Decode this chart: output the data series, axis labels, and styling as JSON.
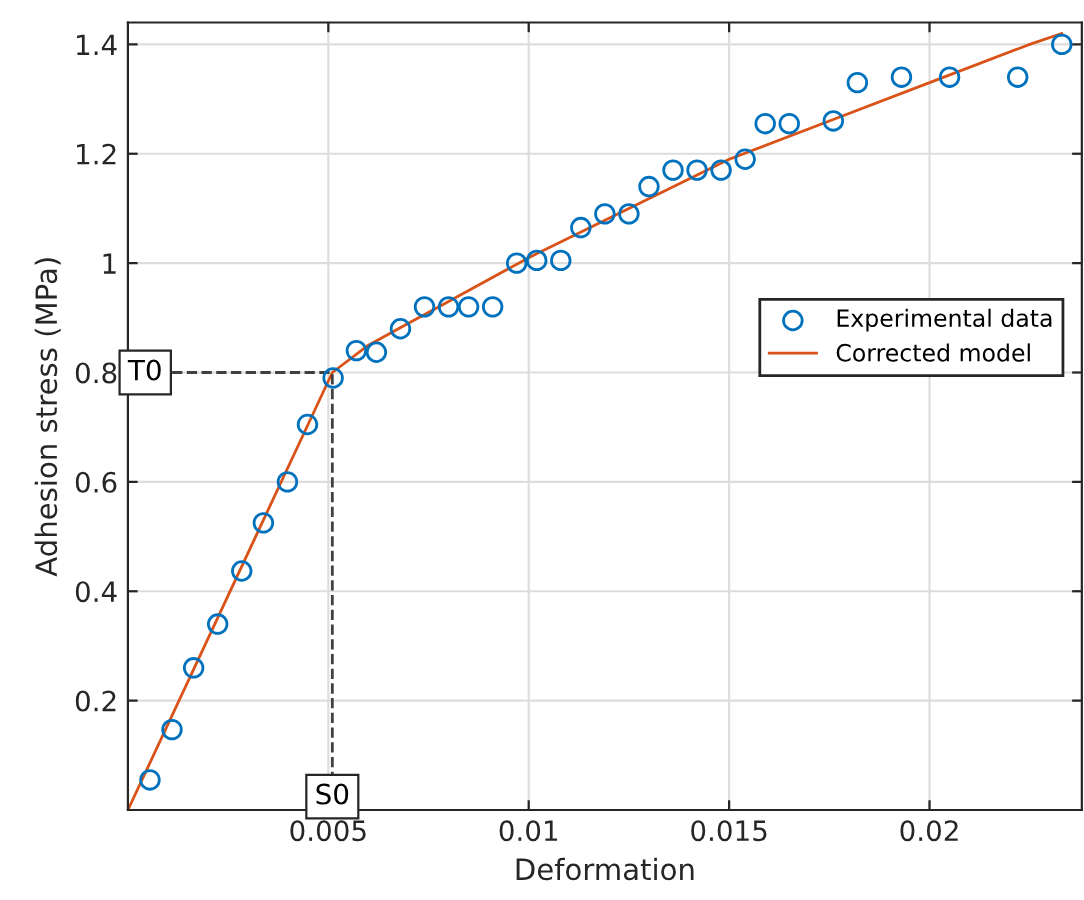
{
  "chart_data": {
    "type": "scatter",
    "xlabel": "Deformation",
    "ylabel": "Adhesion stress (MPa)",
    "xlim": [
      0,
      0.0238
    ],
    "ylim": [
      0,
      1.44
    ],
    "xticks": [
      0.005,
      0.01,
      0.015,
      0.02
    ],
    "yticks": [
      0.2,
      0.4,
      0.6,
      0.8,
      1,
      1.2,
      1.4
    ],
    "grid": true,
    "legend": "center right",
    "series": [
      {
        "name": "Experimental data",
        "marker": "circle",
        "color": "#0072bd",
        "x": [
          0.00055,
          0.0011,
          0.00164,
          0.00224,
          0.00284,
          0.00338,
          0.00398,
          0.00448,
          0.00512,
          0.0057,
          0.0062,
          0.0068,
          0.0074,
          0.008,
          0.0085,
          0.0091,
          0.0097,
          0.0102,
          0.0108,
          0.0113,
          0.0119,
          0.0125,
          0.013,
          0.0136,
          0.0142,
          0.0148,
          0.0154,
          0.0159,
          0.0165,
          0.0176,
          0.0182,
          0.0193,
          0.0205,
          0.0222,
          0.0233
        ],
        "values": [
          0.055,
          0.147,
          0.26,
          0.34,
          0.437,
          0.525,
          0.6,
          0.705,
          0.79,
          0.84,
          0.837,
          0.88,
          0.92,
          0.92,
          0.92,
          0.92,
          1.0,
          1.005,
          1.005,
          1.065,
          1.09,
          1.09,
          1.14,
          1.17,
          1.17,
          1.17,
          1.19,
          1.255,
          1.255,
          1.26,
          1.33,
          1.34,
          1.34,
          1.34,
          1.4
        ]
      },
      {
        "name": "Corrected model",
        "type": "line",
        "marker": "none",
        "line_style": "solid",
        "color": "#d95319",
        "x": [
          0,
          0.0051,
          0.006,
          0.007,
          0.008,
          0.01,
          0.0125,
          0.015,
          0.0175,
          0.02,
          0.0225,
          0.0233
        ],
        "values": [
          0,
          0.8,
          0.85,
          0.89,
          0.93,
          1.01,
          1.1,
          1.19,
          1.26,
          1.33,
          1.4,
          1.42
        ]
      },
      {
        "type": "line",
        "marker": "none",
        "line_style": "dashed",
        "color": "#404040",
        "x": [
          0,
          0.0051,
          0.0051
        ],
        "values": [
          0.8,
          0.8,
          0
        ]
      }
    ],
    "annotations": [
      {
        "text": "T0",
        "x": 0,
        "y": 0.8
      },
      {
        "text": "S0",
        "x": 0.0051,
        "y": 0
      }
    ]
  }
}
